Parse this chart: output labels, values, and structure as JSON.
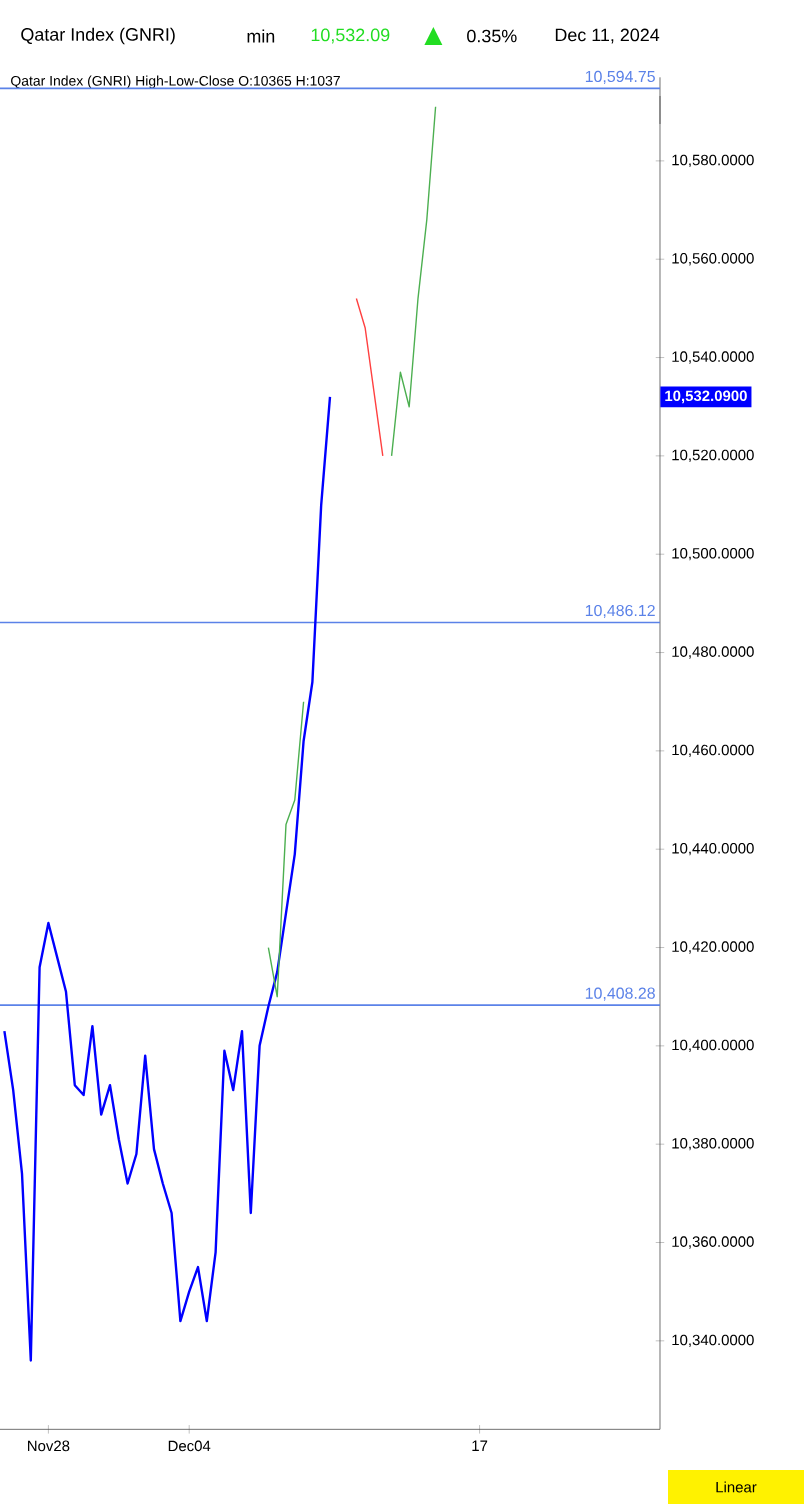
{
  "chart_data": {
    "type": "line",
    "title": "Qatar Index  (GNRI)",
    "subtitle": "Qatar Index (GNRI)  High-Low-Close    O:10365  H:1037",
    "annotations": [
      "min",
      "10,532.09",
      "0.35%",
      "Dec 11, 2024",
      "Linear",
      "10,532.0900"
    ],
    "categories": [
      null,
      null,
      null,
      null,
      null,
      "Nov28",
      null,
      null,
      null,
      null,
      null,
      null,
      null,
      null,
      null,
      null,
      null,
      null,
      null,
      null,
      null,
      "Dec04",
      null,
      null,
      null,
      null,
      null,
      null,
      null,
      null,
      null,
      null,
      null,
      null,
      null,
      null,
      null,
      null,
      null,
      null,
      null,
      null,
      null,
      null,
      null,
      null,
      null,
      null,
      null,
      null,
      null,
      null,
      null,
      null,
      "17",
      null,
      null,
      null,
      null,
      null,
      null,
      null,
      null,
      null,
      null,
      null,
      null,
      null,
      null,
      null,
      null,
      null,
      null,
      null,
      null
    ],
    "series": [
      {
        "color": "#0000ff",
        "values": [
          10403,
          10391,
          10374,
          10336,
          10416,
          10425,
          10418,
          10411,
          10392,
          10390,
          10404,
          10386,
          10392,
          10381,
          10372,
          10378,
          10398,
          10379,
          10372,
          10366,
          10344,
          10350,
          10355,
          10344,
          10358,
          10399,
          10391,
          10403,
          10366,
          10400,
          10408,
          10415,
          10427,
          10439,
          10462,
          10474,
          10510,
          10532,
          null,
          null,
          null,
          null,
          null,
          null,
          null,
          null,
          null,
          null,
          null,
          null,
          null,
          null,
          null,
          null,
          null,
          null,
          null,
          null,
          null,
          null,
          null,
          null,
          null,
          null,
          null,
          null,
          null,
          null,
          null,
          null,
          null,
          null,
          null,
          null,
          null
        ]
      },
      {
        "color": "#4caf50",
        "values": [
          null,
          null,
          null,
          null,
          null,
          null,
          null,
          null,
          null,
          null,
          null,
          null,
          null,
          null,
          null,
          null,
          null,
          null,
          null,
          null,
          null,
          null,
          null,
          null,
          null,
          null,
          null,
          null,
          null,
          null,
          10420,
          10410,
          10445,
          10450,
          10470,
          null,
          null,
          null,
          null,
          null,
          null,
          null,
          null,
          null,
          null,
          null,
          null,
          null,
          null,
          null,
          null,
          null,
          null,
          null,
          null,
          null,
          null,
          null,
          null,
          null,
          null,
          null,
          null,
          null,
          null,
          null,
          null,
          null,
          null,
          null,
          null,
          null,
          null,
          null,
          null
        ]
      },
      {
        "color": "#ff4040",
        "values": [
          null,
          null,
          null,
          null,
          null,
          null,
          null,
          null,
          null,
          null,
          null,
          null,
          null,
          null,
          null,
          null,
          null,
          null,
          null,
          null,
          null,
          null,
          null,
          null,
          null,
          null,
          null,
          null,
          null,
          null,
          null,
          null,
          null,
          null,
          null,
          null,
          null,
          null,
          null,
          null,
          10552,
          10546,
          10533,
          10520,
          null,
          null,
          null,
          null,
          null,
          null,
          null,
          null,
          null,
          null,
          null,
          null,
          null,
          null,
          null,
          null,
          null,
          null,
          null,
          null,
          null,
          null,
          null,
          null,
          null,
          null,
          null,
          null,
          null,
          null,
          null
        ]
      },
      {
        "color": "#4caf50",
        "values": [
          null,
          null,
          null,
          null,
          null,
          null,
          null,
          null,
          null,
          null,
          null,
          null,
          null,
          null,
          null,
          null,
          null,
          null,
          null,
          null,
          null,
          null,
          null,
          null,
          null,
          null,
          null,
          null,
          null,
          null,
          null,
          null,
          null,
          null,
          null,
          null,
          null,
          null,
          null,
          null,
          null,
          null,
          null,
          null,
          10520,
          10537,
          10530,
          10552,
          10568,
          10591,
          null,
          null,
          null,
          null,
          null,
          null,
          null,
          null,
          null,
          null,
          null,
          null,
          null,
          null,
          null,
          null,
          null,
          null,
          null,
          null,
          null,
          null,
          null,
          null,
          null
        ]
      }
    ],
    "ylim": [
      10322,
      10597
    ],
    "yticks": [
      {
        "value": 10340,
        "label": "10,340.0000"
      },
      {
        "value": 10360,
        "label": "10,360.0000"
      },
      {
        "value": 10380,
        "label": "10,380.0000"
      },
      {
        "value": 10400,
        "label": "10,400.0000"
      },
      {
        "value": 10420,
        "label": "10,420.0000"
      },
      {
        "value": 10440,
        "label": "10,440.0000"
      },
      {
        "value": 10460,
        "label": "10,460.0000"
      },
      {
        "value": 10480,
        "label": "10,480.0000"
      },
      {
        "value": 10500,
        "label": "10,500.0000"
      },
      {
        "value": 10520,
        "label": "10,520.0000"
      },
      {
        "value": 10540,
        "label": "10,540.0000"
      },
      {
        "value": 10560,
        "label": "10,560.0000"
      },
      {
        "value": 10580,
        "label": "10,580.0000"
      }
    ],
    "ref_lines": [
      {
        "axis": "y",
        "value": 10594.75,
        "label": "10,594.75",
        "color": "#5b82e8"
      },
      {
        "axis": "y",
        "value": 10486.12,
        "label": "10,486.12",
        "color": "#5b82e8"
      },
      {
        "axis": "y",
        "value": 10408.28,
        "label": "10,408.28",
        "color": "#5b82e8"
      }
    ],
    "grid": false,
    "marker": "none",
    "line_style": "solid"
  }
}
